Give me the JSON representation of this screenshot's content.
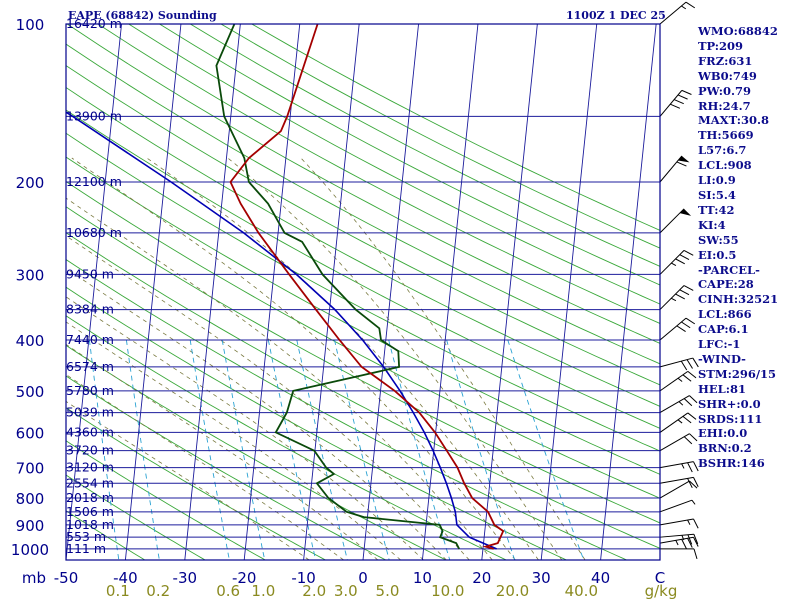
{
  "header": {
    "title": "EAPE (68842) Sounding",
    "time": "1100Z  1 DEC 25"
  },
  "indices": [
    "WMO:68842",
    "TP:209",
    "FRZ:631",
    "WB0:749",
    "PW:0.79",
    "RH:24.7",
    "MAXT:30.8",
    "TH:5669",
    "L57:6.7",
    "LCL:908",
    "LI:0.9",
    "SI:5.4",
    "TT:42",
    "KI:4",
    "SW:55",
    "EI:0.5",
    "-PARCEL-",
    "CAPE:28",
    "CINH:32521",
    "LCL:866",
    "CAP:6.1",
    "LFC:-1",
    "-WIND-",
    "STM:296/15",
    "HEL:81",
    "SHR+:0.0",
    "SRDS:111",
    "EHI:0.0",
    "BRN:0.2",
    "BSHR:146"
  ],
  "colors": {
    "axis": "#00008b",
    "isobar": "#1c1c9c",
    "isotherm": "#1c1c9c",
    "dry_adiabat": "#3aa83a",
    "moist_adiabat": "#7a7a40",
    "mixing_ratio": "#2aa2d2",
    "temperature": "#a40000",
    "dewpoint": "#0a4a0a",
    "parcel": "#0000b4",
    "label_temp": "#00008b",
    "label_mixing": "#8a8a20"
  },
  "chart_data": {
    "type": "skew-t",
    "title": "EAPE (68842) Sounding",
    "pressure_unit": "mb",
    "mixing_ratio_unit": "g/kg",
    "pressure_ticks": [
      100,
      200,
      300,
      400,
      500,
      600,
      700,
      800,
      900,
      1000
    ],
    "temperature_ticks": [
      -50,
      -40,
      -30,
      -20,
      -10,
      0,
      10,
      20,
      30,
      40
    ],
    "mixing_ratio_labels": [
      "0.1",
      "0.2",
      "0.6",
      "1.0",
      "2.0",
      "3.0",
      "5.0",
      "10.0",
      "20.0",
      "40.0"
    ],
    "mixing_ratio_values": [
      0.1,
      0.2,
      0.6,
      1.0,
      2.0,
      3.0,
      5.0,
      10.0,
      20.0,
      40.0
    ],
    "xlim": [
      -50,
      50
    ],
    "plim": [
      100,
      1050
    ],
    "heights": [
      {
        "label": "16420 m",
        "p": 100
      },
      {
        "label": "13900 m",
        "p": 150
      },
      {
        "label": "12100 m",
        "p": 200
      },
      {
        "label": "10680 m",
        "p": 250
      },
      {
        "label": "9450 m",
        "p": 300
      },
      {
        "label": "8384 m",
        "p": 350
      },
      {
        "label": "7440 m",
        "p": 400
      },
      {
        "label": "6574 m",
        "p": 450
      },
      {
        "label": "5780 m",
        "p": 500
      },
      {
        "label": "5039 m",
        "p": 550
      },
      {
        "label": "4360 m",
        "p": 600
      },
      {
        "label": "3720 m",
        "p": 650
      },
      {
        "label": "3120 m",
        "p": 700
      },
      {
        "label": "2554 m",
        "p": 750
      },
      {
        "label": "2018 m",
        "p": 800
      },
      {
        "label": "1506 m",
        "p": 850
      },
      {
        "label": "1018 m",
        "p": 900
      },
      {
        "label": "553 m",
        "p": 950
      },
      {
        "label": "111 m",
        "p": 1000
      }
    ],
    "temperature": [
      [
        1000,
        21.8
      ],
      [
        990,
        20.4
      ],
      [
        975,
        22.4
      ],
      [
        925,
        23.1
      ],
      [
        900,
        21.5
      ],
      [
        850,
        20.2
      ],
      [
        800,
        17.3
      ],
      [
        750,
        15.7
      ],
      [
        700,
        14.3
      ],
      [
        650,
        12.2
      ],
      [
        600,
        9.9
      ],
      [
        550,
        6.9
      ],
      [
        500,
        2.4
      ],
      [
        450,
        -3.6
      ],
      [
        400,
        -7.8
      ],
      [
        350,
        -12.3
      ],
      [
        300,
        -17.4
      ],
      [
        250,
        -23.3
      ],
      [
        220,
        -26.8
      ],
      [
        200,
        -28.9
      ],
      [
        180,
        -26.2
      ],
      [
        160,
        -21.3
      ],
      [
        150,
        -20.5
      ],
      [
        100,
        -17.0
      ]
    ],
    "dewpoint": [
      [
        1000,
        16.0
      ],
      [
        975,
        15.4
      ],
      [
        950,
        12.6
      ],
      [
        925,
        12.9
      ],
      [
        900,
        12.3
      ],
      [
        870,
        -0.6
      ],
      [
        850,
        -3.6
      ],
      [
        800,
        -6.9
      ],
      [
        750,
        -9.1
      ],
      [
        720,
        -6.4
      ],
      [
        700,
        -7.8
      ],
      [
        650,
        -10.1
      ],
      [
        600,
        -16.9
      ],
      [
        550,
        -15.4
      ],
      [
        500,
        -14.7
      ],
      [
        450,
        2.7
      ],
      [
        420,
        2.3
      ],
      [
        400,
        -0.8
      ],
      [
        380,
        -1.3
      ],
      [
        350,
        -5.6
      ],
      [
        300,
        -11.8
      ],
      [
        260,
        -15.8
      ],
      [
        250,
        -18.9
      ],
      [
        220,
        -22.2
      ],
      [
        200,
        -25.8
      ],
      [
        180,
        -27.0
      ],
      [
        150,
        -31.1
      ],
      [
        120,
        -33.3
      ],
      [
        100,
        -31.0
      ]
    ],
    "parcel": [
      [
        1000,
        22.3
      ],
      [
        950,
        17.5
      ],
      [
        900,
        15.2
      ],
      [
        850,
        14.7
      ],
      [
        800,
        13.8
      ],
      [
        750,
        12.7
      ],
      [
        700,
        11.4
      ],
      [
        650,
        9.9
      ],
      [
        600,
        8.1
      ],
      [
        550,
        5.9
      ],
      [
        500,
        3.3
      ],
      [
        450,
        0.1
      ],
      [
        400,
        -3.9
      ],
      [
        350,
        -9.1
      ],
      [
        300,
        -16.2
      ],
      [
        250,
        -25.8
      ],
      [
        200,
        -38.9
      ],
      [
        150,
        -56.6
      ],
      [
        100,
        -83.6
      ]
    ],
    "wind": [
      {
        "p": 1000,
        "dir": 90,
        "spd": 10
      },
      {
        "p": 975,
        "dir": 80,
        "spd": 35
      },
      {
        "p": 950,
        "dir": 85,
        "spd": 25
      },
      {
        "p": 900,
        "dir": 80,
        "spd": 15
      },
      {
        "p": 850,
        "dir": 70,
        "spd": 5
      },
      {
        "p": 800,
        "dir": 60,
        "spd": 10
      },
      {
        "p": 750,
        "dir": 80,
        "spd": 20
      },
      {
        "p": 700,
        "dir": 80,
        "spd": 25
      },
      {
        "p": 650,
        "dir": 60,
        "spd": 20
      },
      {
        "p": 600,
        "dir": 55,
        "spd": 25
      },
      {
        "p": 550,
        "dir": 60,
        "spd": 25
      },
      {
        "p": 500,
        "dir": 55,
        "spd": 25
      },
      {
        "p": 450,
        "dir": 75,
        "spd": 30
      },
      {
        "p": 400,
        "dir": 50,
        "spd": 30
      },
      {
        "p": 350,
        "dir": 45,
        "spd": 35
      },
      {
        "p": 300,
        "dir": 45,
        "spd": 35
      },
      {
        "p": 250,
        "dir": 45,
        "spd": 50
      },
      {
        "p": 200,
        "dir": 40,
        "spd": 60
      },
      {
        "p": 150,
        "dir": 40,
        "spd": 40
      },
      {
        "p": 100,
        "dir": 50,
        "spd": 15
      }
    ]
  }
}
